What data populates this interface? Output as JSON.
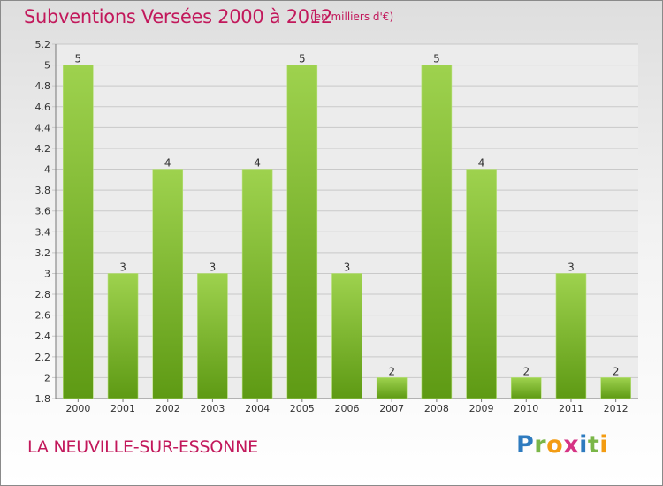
{
  "title": "Subventions Versées 2000 à 2012",
  "unit_note": "(en milliers d'€)",
  "commune": "LA NEUVILLE-SUR-ESSONNE",
  "logo": {
    "letters": [
      "P",
      "r",
      "o",
      "x",
      "i",
      "t",
      "i"
    ],
    "colors": [
      "#2e7bbf",
      "#7ab648",
      "#f39c12",
      "#d63384",
      "#2e7bbf",
      "#7ab648",
      "#f39c12"
    ]
  },
  "colors": {
    "bar_light": "#9ed24e",
    "bar_dark": "#5e9a14",
    "title": "#c2185b"
  },
  "chart_data": {
    "type": "bar",
    "title": "Subventions Versées 2000 à 2012",
    "categories": [
      "2000",
      "2001",
      "2002",
      "2003",
      "2004",
      "2005",
      "2006",
      "2007",
      "2008",
      "2009",
      "2010",
      "2011",
      "2012"
    ],
    "values": [
      5,
      3,
      4,
      3,
      4,
      5,
      3,
      2,
      5,
      4,
      2,
      3,
      2
    ],
    "value_labels": [
      "5",
      "3",
      "4",
      "3",
      "4",
      "5",
      "3",
      "2",
      "5",
      "4",
      "2",
      "3",
      "2"
    ],
    "ylim": [
      1.8,
      5.2
    ],
    "yticks": [
      "5.2",
      "5",
      "4.8",
      "4.6",
      "4.4",
      "4.2",
      "4",
      "3.8",
      "3.6",
      "3.4",
      "3.2",
      "3",
      "2.8",
      "2.6",
      "2.4",
      "2.2",
      "2",
      "1.8"
    ],
    "ytick_values": [
      5.2,
      5,
      4.8,
      4.6,
      4.4,
      4.2,
      4,
      3.8,
      3.6,
      3.4,
      3.2,
      3,
      2.8,
      2.6,
      2.4,
      2.2,
      2,
      1.8
    ],
    "grid": true,
    "legend": "none"
  }
}
